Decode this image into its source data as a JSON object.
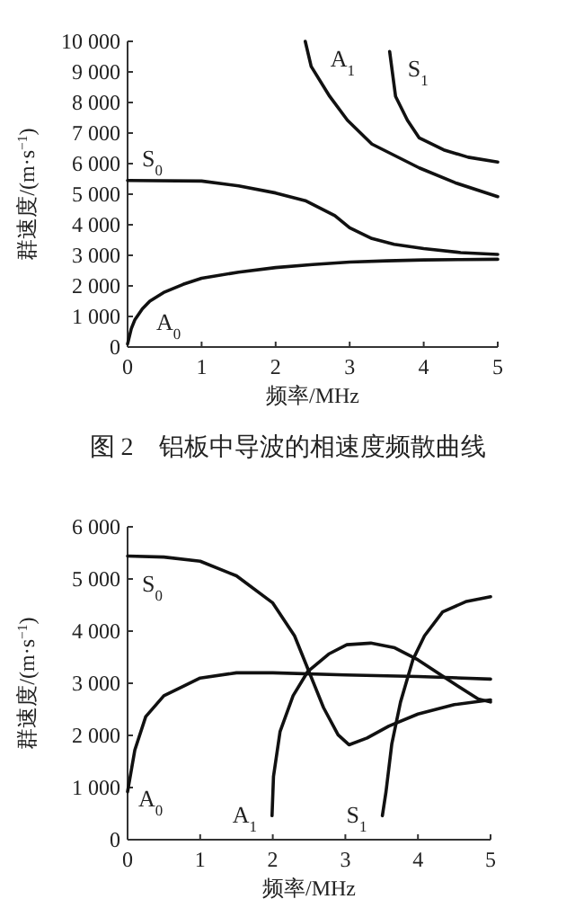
{
  "chart_data": [
    {
      "type": "line",
      "xlabel": "频率/MHz",
      "ylabel": "群速度/(m·s$^{−1}$)",
      "xlim": [
        0,
        5
      ],
      "ylim": [
        0,
        10000
      ],
      "xticks": [
        0,
        1,
        2,
        3,
        4,
        5
      ],
      "yticks": [
        0,
        {
          "value": 1000,
          "label": "1 000"
        },
        {
          "value": 2000,
          "label": "2 000"
        },
        {
          "value": 3000,
          "label": "3 000"
        },
        {
          "value": 4000,
          "label": "4 000"
        },
        {
          "value": 5000,
          "label": "5 000"
        },
        {
          "value": 6000,
          "label": "6 000"
        },
        {
          "value": 7000,
          "label": "7 000"
        },
        {
          "value": 8000,
          "label": "8 000"
        },
        {
          "value": 9000,
          "label": "9 000"
        },
        {
          "value": 10000,
          "label": "10 000"
        }
      ],
      "grid": false,
      "marker": "none",
      "line_style": "solid",
      "series": [
        {
          "name": "A$_{0}$",
          "color": "#111111",
          "x": [
            0,
            0.05,
            0.1,
            0.2,
            0.3,
            0.5,
            0.75,
            1,
            1.5,
            2,
            2.5,
            3,
            3.5,
            4,
            4.5,
            5
          ],
          "values": [
            100,
            600,
            900,
            1250,
            1500,
            1800,
            2050,
            2250,
            2450,
            2600,
            2700,
            2780,
            2820,
            2850,
            2860,
            2870
          ]
        },
        {
          "name": "S$_{0}$",
          "color": "#111111",
          "x": [
            0,
            1,
            1.5,
            2,
            2.4,
            2.8,
            3,
            3.3,
            3.6,
            4,
            4.5,
            5
          ],
          "values": [
            5450,
            5430,
            5270,
            5040,
            4790,
            4300,
            3900,
            3550,
            3360,
            3220,
            3090,
            3030
          ]
        },
        {
          "name": "A$_{1}$",
          "color": "#111111",
          "x": [
            2.4,
            2.48,
            2.73,
            2.97,
            3.3,
            3.94,
            4.43,
            5
          ],
          "values": [
            10000,
            9180,
            8200,
            7420,
            6640,
            5860,
            5370,
            4920
          ]
        },
        {
          "name": "S$_{1}$",
          "color": "#111111",
          "x": [
            3.54,
            3.62,
            3.78,
            3.94,
            4.27,
            4.6,
            5
          ],
          "values": [
            9670,
            8200,
            7420,
            6840,
            6450,
            6210,
            6050
          ]
        }
      ],
      "annotations": [
        "图 2　铝板中导波的相速度频散曲线"
      ]
    },
    {
      "type": "line",
      "xlabel": "频率/MHz",
      "ylabel": "群速度/(m·s$^{−1}$)",
      "xlim": [
        0,
        5
      ],
      "ylim": [
        0,
        6000
      ],
      "xticks": [
        0,
        1,
        2,
        3,
        4,
        5
      ],
      "yticks": [
        0,
        {
          "value": 1000,
          "label": "1 000"
        },
        {
          "value": 2000,
          "label": "2 000"
        },
        {
          "value": 3000,
          "label": "3 000"
        },
        {
          "value": 4000,
          "label": "4 000"
        },
        {
          "value": 5000,
          "label": "5 000"
        },
        {
          "value": 6000,
          "label": "6 000"
        }
      ],
      "grid": false,
      "marker": "none",
      "line_style": "solid",
      "series": [
        {
          "name": "S$_{0}$",
          "color": "#111111",
          "x": [
            0,
            0.5,
            1,
            1.5,
            2,
            2.3,
            2.5,
            2.7,
            2.9,
            3.05,
            3.3,
            3.6,
            4,
            4.5,
            5
          ],
          "values": [
            5440,
            5420,
            5340,
            5060,
            4540,
            3910,
            3220,
            2530,
            2010,
            1820,
            1950,
            2180,
            2410,
            2590,
            2680
          ]
        },
        {
          "name": "A$_{0}$",
          "color": "#111111",
          "x": [
            0,
            0.1,
            0.25,
            0.5,
            1,
            1.5,
            2,
            3,
            4,
            5
          ],
          "values": [
            920,
            1720,
            2360,
            2760,
            3100,
            3200,
            3200,
            3160,
            3130,
            3080
          ]
        },
        {
          "name": "A$_{1}$",
          "color": "#111111",
          "x": [
            1.99,
            2.01,
            2.1,
            2.28,
            2.48,
            2.77,
            3.02,
            3.35,
            3.68,
            4,
            4.5,
            4.83,
            5
          ],
          "values": [
            460,
            1210,
            2070,
            2760,
            3220,
            3560,
            3740,
            3770,
            3680,
            3450,
            2990,
            2700,
            2640
          ]
        },
        {
          "name": "S$_{1}$",
          "color": "#111111",
          "x": [
            3.51,
            3.56,
            3.64,
            3.76,
            3.93,
            4.09,
            4.34,
            4.67,
            5
          ],
          "values": [
            460,
            920,
            1840,
            2640,
            3450,
            3910,
            4370,
            4570,
            4660
          ]
        }
      ]
    }
  ]
}
